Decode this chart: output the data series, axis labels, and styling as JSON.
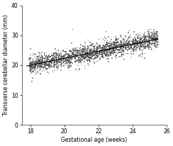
{
  "title": "",
  "xlabel": "Gestational age (weeks)",
  "ylabel": "Transverse cerebellar diameter (mm)",
  "xlim": [
    17.5,
    25.8
  ],
  "ylim": [
    0,
    40
  ],
  "xticks": [
    18,
    20,
    22,
    24,
    26
  ],
  "yticks": [
    0,
    10,
    20,
    30,
    40
  ],
  "scatter_color": "#444444",
  "line_color": "#000000",
  "background_color": "#ffffff",
  "seed": 42,
  "n_points": 2000,
  "mean_slope": 1.18,
  "mean_intercept": -1.3,
  "noise_std": 1.5,
  "gestational_age_min": 17.8,
  "gestational_age_max": 25.5
}
